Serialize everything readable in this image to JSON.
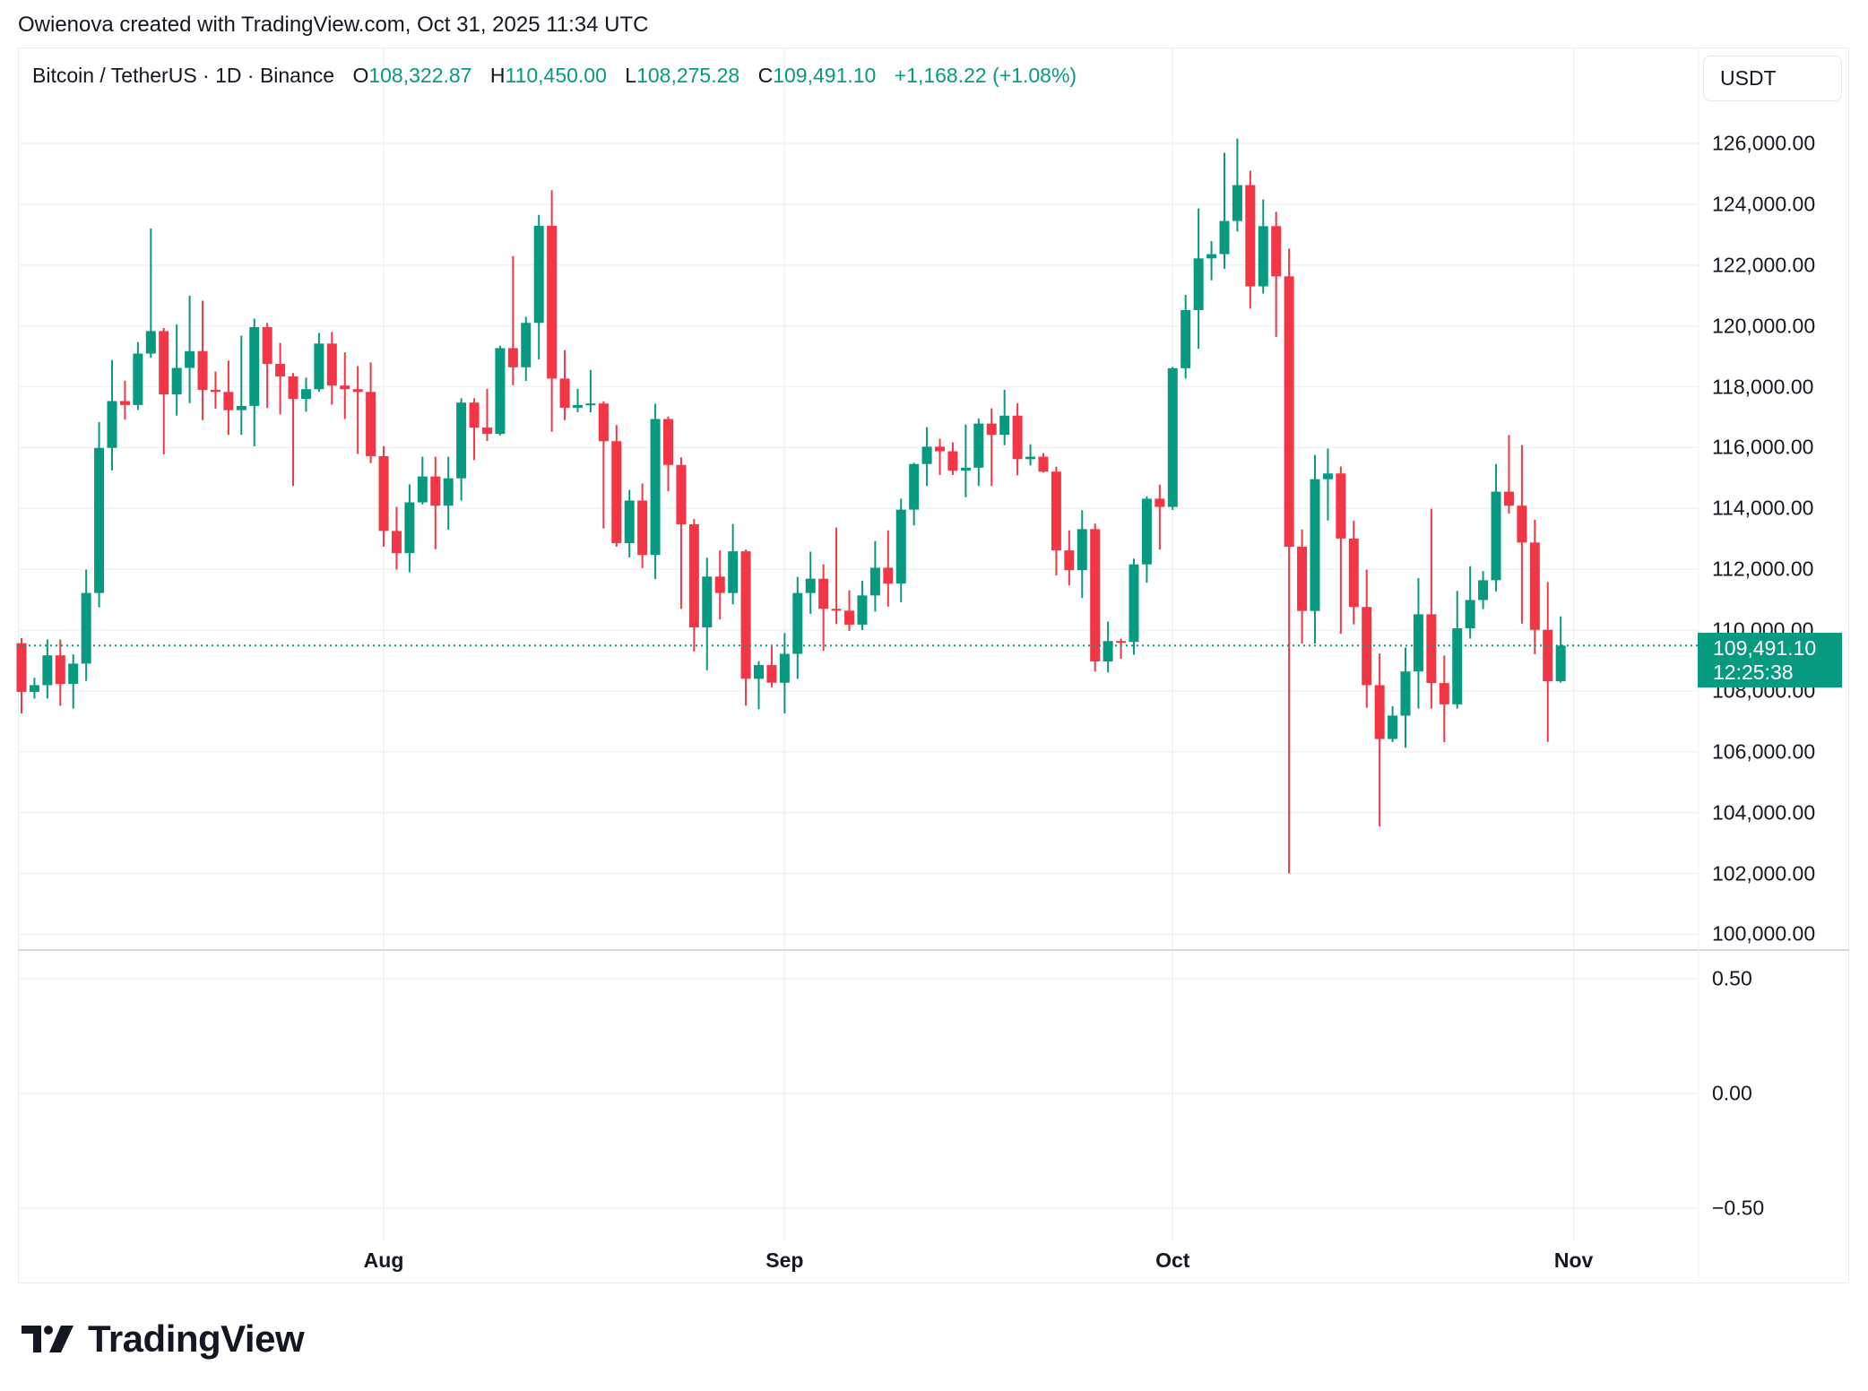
{
  "header": {
    "title": "Owienova created with TradingView.com, Oct 31, 2025 11:34 UTC",
    "symbol": "Bitcoin / TetherUS · 1D · Binance",
    "o_label": "O",
    "o_value": "108,322.87",
    "h_label": "H",
    "h_value": "110,450.00",
    "l_label": "L",
    "l_value": "108,275.28",
    "c_label": "C",
    "c_value": "109,491.10",
    "change": "+1,168.22 (+1.08%)"
  },
  "currency_button": "USDT",
  "last_price": {
    "price": "109,491.10",
    "countdown": "12:25:38",
    "value": 109491.1
  },
  "colors": {
    "up": "#089981",
    "down": "#F23645",
    "grid": "#f0f0f0",
    "text": "#131722"
  },
  "indicator_pane": {
    "tick_labels": [
      "0.50",
      "0.00",
      "−0.50"
    ],
    "ylim": [
      -0.5,
      0.5
    ]
  },
  "logo": {
    "text": "TradingView"
  },
  "chart_data": {
    "type": "candlestick",
    "title": "Bitcoin / TetherUS · 1D · Binance",
    "ylim": [
      100000,
      126000
    ],
    "y_tick_labels": [
      "126,000.00",
      "124,000.00",
      "122,000.00",
      "120,000.00",
      "118,000.00",
      "116,000.00",
      "114,000.00",
      "112,000.00",
      "110,000.00",
      "108,000.00",
      "106,000.00",
      "104,000.00",
      "102,000.00",
      "100,000.00"
    ],
    "y_ticks": [
      126000,
      124000,
      122000,
      120000,
      118000,
      116000,
      114000,
      112000,
      110000,
      108000,
      106000,
      104000,
      102000,
      100000
    ],
    "x_tick_labels": [
      "Aug",
      "Sep",
      "Oct",
      "Nov"
    ],
    "x_ticks": [
      "2025-08-01",
      "2025-09-01",
      "2025-10-01",
      "2025-11-01"
    ],
    "grid": true,
    "candles": [
      [
        "2025-07-04",
        109570,
        109740,
        107260,
        107970
      ],
      [
        "2025-07-05",
        107970,
        108430,
        107750,
        108190
      ],
      [
        "2025-07-06",
        108190,
        109690,
        107750,
        109170
      ],
      [
        "2025-07-07",
        109170,
        109690,
        107510,
        108230
      ],
      [
        "2025-07-08",
        108230,
        109200,
        107420,
        108900
      ],
      [
        "2025-07-09",
        108900,
        111990,
        108330,
        111220
      ],
      [
        "2025-07-10",
        111220,
        116840,
        110750,
        115990
      ],
      [
        "2025-07-11",
        115990,
        118880,
        115250,
        117530
      ],
      [
        "2025-07-12",
        117530,
        118200,
        116920,
        117400
      ],
      [
        "2025-07-13",
        117400,
        119470,
        117240,
        119090
      ],
      [
        "2025-07-14",
        119090,
        123200,
        118950,
        119830
      ],
      [
        "2025-07-15",
        119830,
        119930,
        115780,
        117750
      ],
      [
        "2025-07-16",
        117750,
        120050,
        117050,
        118620
      ],
      [
        "2025-07-17",
        118620,
        120990,
        117460,
        119170
      ],
      [
        "2025-07-18",
        119170,
        120830,
        116900,
        117900
      ],
      [
        "2025-07-19",
        117900,
        118500,
        117280,
        117830
      ],
      [
        "2025-07-20",
        117830,
        118860,
        116420,
        117230
      ],
      [
        "2025-07-21",
        117230,
        119680,
        116420,
        117370
      ],
      [
        "2025-07-22",
        117370,
        120240,
        116040,
        119960
      ],
      [
        "2025-07-23",
        119960,
        120100,
        117300,
        118750
      ],
      [
        "2025-07-24",
        118750,
        119440,
        117090,
        118340
      ],
      [
        "2025-07-25",
        118340,
        118450,
        114740,
        117600
      ],
      [
        "2025-07-26",
        117600,
        118300,
        117180,
        117920
      ],
      [
        "2025-07-27",
        117920,
        119770,
        117830,
        119420
      ],
      [
        "2025-07-28",
        119420,
        119800,
        117410,
        118040
      ],
      [
        "2025-07-29",
        118040,
        119130,
        116940,
        117920
      ],
      [
        "2025-07-30",
        117920,
        118680,
        115790,
        117830
      ],
      [
        "2025-07-31",
        117830,
        118800,
        115490,
        115720
      ],
      [
        "2025-08-01",
        115720,
        116050,
        112740,
        113260
      ],
      [
        "2025-08-02",
        113260,
        114050,
        111990,
        112530
      ],
      [
        "2025-08-03",
        112530,
        114790,
        111900,
        114200
      ],
      [
        "2025-08-04",
        114200,
        115700,
        114130,
        115050
      ],
      [
        "2025-08-05",
        115050,
        115700,
        112660,
        114090
      ],
      [
        "2025-08-06",
        114090,
        115700,
        113300,
        114990
      ],
      [
        "2025-08-07",
        114990,
        117620,
        114260,
        117480
      ],
      [
        "2025-08-08",
        117480,
        117620,
        115590,
        116660
      ],
      [
        "2025-08-09",
        116660,
        117930,
        116220,
        116450
      ],
      [
        "2025-08-10",
        116450,
        119350,
        116400,
        119270
      ],
      [
        "2025-08-11",
        119270,
        122300,
        118050,
        118640
      ],
      [
        "2025-08-12",
        118640,
        120300,
        118190,
        120100
      ],
      [
        "2025-08-13",
        120100,
        123650,
        118900,
        123290
      ],
      [
        "2025-08-14",
        123290,
        124460,
        116520,
        118270
      ],
      [
        "2025-08-15",
        118270,
        119200,
        116900,
        117310
      ],
      [
        "2025-08-16",
        117310,
        117930,
        117160,
        117400
      ],
      [
        "2025-08-17",
        117400,
        118550,
        117160,
        117450
      ],
      [
        "2025-08-18",
        117450,
        117520,
        113340,
        116210
      ],
      [
        "2025-08-19",
        116210,
        116740,
        112740,
        112860
      ],
      [
        "2025-08-20",
        112860,
        114610,
        112390,
        114260
      ],
      [
        "2025-08-21",
        114260,
        114820,
        112040,
        112470
      ],
      [
        "2025-08-22",
        112470,
        117440,
        111680,
        116940
      ],
      [
        "2025-08-23",
        116940,
        117020,
        114570,
        115430
      ],
      [
        "2025-08-24",
        115430,
        115680,
        110700,
        113480
      ],
      [
        "2025-08-25",
        113480,
        113650,
        109300,
        110090
      ],
      [
        "2025-08-26",
        110090,
        112380,
        108680,
        111760
      ],
      [
        "2025-08-27",
        111760,
        112620,
        110350,
        111220
      ],
      [
        "2025-08-28",
        111220,
        113490,
        110850,
        112590
      ],
      [
        "2025-08-29",
        112590,
        112650,
        107520,
        108400
      ],
      [
        "2025-08-30",
        108400,
        108980,
        107400,
        108850
      ],
      [
        "2025-08-31",
        108850,
        109470,
        108120,
        108270
      ],
      [
        "2025-09-01",
        108270,
        109900,
        107260,
        109220
      ],
      [
        "2025-09-02",
        109220,
        111750,
        108400,
        111220
      ],
      [
        "2025-09-03",
        111220,
        112580,
        110530,
        111690
      ],
      [
        "2025-09-04",
        111690,
        112160,
        109320,
        110700
      ],
      [
        "2025-09-05",
        110700,
        113370,
        110200,
        110640
      ],
      [
        "2025-09-06",
        110640,
        111310,
        109970,
        110180
      ],
      [
        "2025-09-07",
        110180,
        111620,
        110000,
        111140
      ],
      [
        "2025-09-08",
        111140,
        112930,
        110610,
        112050
      ],
      [
        "2025-09-09",
        112050,
        113280,
        110770,
        111530
      ],
      [
        "2025-09-10",
        111530,
        114320,
        110920,
        113960
      ],
      [
        "2025-09-11",
        113960,
        115500,
        113440,
        115460
      ],
      [
        "2025-09-12",
        115460,
        116670,
        114740,
        116030
      ],
      [
        "2025-09-13",
        116030,
        116290,
        115100,
        115880
      ],
      [
        "2025-09-14",
        115880,
        116170,
        115100,
        115240
      ],
      [
        "2025-09-15",
        115240,
        116760,
        114370,
        115340
      ],
      [
        "2025-09-16",
        115340,
        116960,
        114740,
        116790
      ],
      [
        "2025-09-17",
        116790,
        117290,
        114740,
        116420
      ],
      [
        "2025-09-18",
        116420,
        117900,
        116080,
        117050
      ],
      [
        "2025-09-19",
        117050,
        117460,
        115090,
        115620
      ],
      [
        "2025-09-20",
        115620,
        116110,
        115410,
        115700
      ],
      [
        "2025-09-21",
        115700,
        115820,
        115180,
        115210
      ],
      [
        "2025-09-22",
        115210,
        115370,
        111800,
        112620
      ],
      [
        "2025-09-23",
        112620,
        113280,
        111470,
        111970
      ],
      [
        "2025-09-24",
        111970,
        113940,
        111060,
        113320
      ],
      [
        "2025-09-25",
        113320,
        113500,
        108640,
        108970
      ],
      [
        "2025-09-26",
        108970,
        110280,
        108610,
        109640
      ],
      [
        "2025-09-27",
        109640,
        109720,
        109060,
        109610
      ],
      [
        "2025-09-28",
        109610,
        112350,
        109190,
        112160
      ],
      [
        "2025-09-29",
        112160,
        114400,
        111560,
        114320
      ],
      [
        "2025-09-30",
        114320,
        114780,
        112650,
        114050
      ],
      [
        "2025-10-01",
        114050,
        118650,
        113950,
        118610
      ],
      [
        "2025-10-02",
        118610,
        121020,
        118270,
        120520
      ],
      [
        "2025-10-03",
        120520,
        123860,
        119250,
        122220
      ],
      [
        "2025-10-04",
        122220,
        122790,
        121500,
        122360
      ],
      [
        "2025-10-05",
        122360,
        125690,
        121880,
        123450
      ],
      [
        "2025-10-06",
        123450,
        126160,
        123100,
        124630
      ],
      [
        "2025-10-07",
        124630,
        125100,
        120570,
        121300
      ],
      [
        "2025-10-08",
        121300,
        124160,
        121060,
        123280
      ],
      [
        "2025-10-09",
        123280,
        123750,
        119640,
        121630
      ],
      [
        "2025-10-10",
        121630,
        122540,
        102000,
        112740
      ],
      [
        "2025-10-11",
        112740,
        113310,
        109560,
        110630
      ],
      [
        "2025-10-12",
        110630,
        115760,
        109560,
        114960
      ],
      [
        "2025-10-13",
        114960,
        115970,
        113600,
        115150
      ],
      [
        "2025-10-14",
        115150,
        115380,
        109880,
        113010
      ],
      [
        "2025-10-15",
        113010,
        113600,
        110190,
        110760
      ],
      [
        "2025-10-16",
        110760,
        111990,
        107450,
        108190
      ],
      [
        "2025-10-17",
        108190,
        109230,
        103540,
        106420
      ],
      [
        "2025-10-18",
        106420,
        107500,
        106320,
        107190
      ],
      [
        "2025-10-19",
        107190,
        109430,
        106130,
        108640
      ],
      [
        "2025-10-20",
        108640,
        111710,
        107420,
        110520
      ],
      [
        "2025-10-21",
        110520,
        113990,
        107420,
        108260
      ],
      [
        "2025-10-22",
        108260,
        109160,
        106320,
        107560
      ],
      [
        "2025-10-23",
        107560,
        111290,
        107420,
        110060
      ],
      [
        "2025-10-24",
        110060,
        112100,
        109720,
        110990
      ],
      [
        "2025-10-25",
        110990,
        111940,
        110690,
        111640
      ],
      [
        "2025-10-26",
        111640,
        115460,
        111270,
        114550
      ],
      [
        "2025-10-27",
        114550,
        116410,
        113830,
        114090
      ],
      [
        "2025-10-28",
        114090,
        116080,
        110210,
        112880
      ],
      [
        "2025-10-29",
        112880,
        113630,
        109210,
        110010
      ],
      [
        "2025-10-30",
        110010,
        111580,
        106330,
        108320
      ],
      [
        "2025-10-31",
        108322.87,
        110450.0,
        108275.28,
        109491.1
      ]
    ]
  }
}
